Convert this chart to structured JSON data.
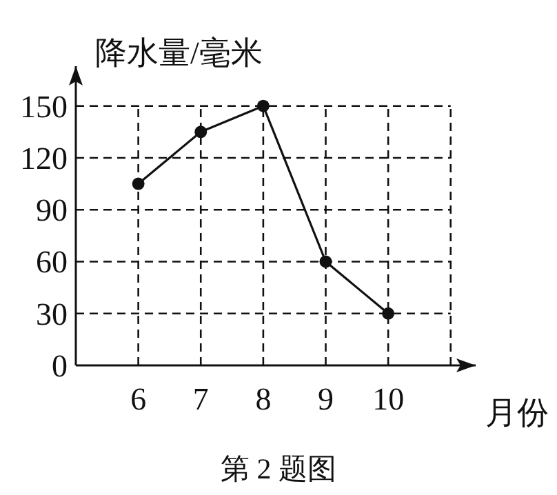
{
  "chart_data": {
    "type": "line",
    "ylabel": "降水量/毫米",
    "xlabel": "月份",
    "annotations": [
      "第 2 题图"
    ],
    "x": [
      6,
      7,
      8,
      9,
      10
    ],
    "series": [
      {
        "color": "#111111",
        "values": [
          105,
          135,
          150,
          60,
          30
        ]
      }
    ],
    "xlim": [
      5,
      11.4
    ],
    "ylim": [
      0,
      173
    ],
    "xticks": [
      6,
      7,
      8,
      9,
      10,
      {
        "value": 11,
        "label": null
      }
    ],
    "yticks": [
      0,
      30,
      60,
      90,
      120,
      150
    ],
    "grid": true,
    "marker": "circle",
    "line_style": "solid"
  }
}
